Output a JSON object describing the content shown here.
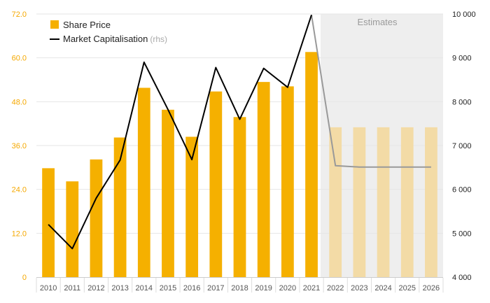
{
  "chart_data": {
    "type": "bar",
    "categories": [
      "2010",
      "2011",
      "2012",
      "2013",
      "2014",
      "2015",
      "2016",
      "2017",
      "2018",
      "2019",
      "2020",
      "2021",
      "2022",
      "2023",
      "2024",
      "2025",
      "2026"
    ],
    "series": [
      {
        "name": "Share Price",
        "type": "bar",
        "axis": "left",
        "values": [
          29.8,
          26.2,
          32.2,
          38.2,
          51.8,
          45.8,
          38.4,
          50.8,
          43.8,
          53.4,
          52.2,
          61.6,
          41.0,
          41.0,
          41.0,
          41.0,
          41.0
        ],
        "estimated_from_index": 12
      },
      {
        "name": "Market Capitalisation",
        "name_note": "(rhs)",
        "type": "line",
        "axis": "right",
        "values": [
          5200,
          4650,
          5800,
          6670,
          8900,
          7820,
          6680,
          8780,
          7600,
          8760,
          8330,
          9980,
          6540,
          6510,
          6510,
          6510,
          6510
        ],
        "estimated_from_index": 11
      }
    ],
    "y_left": {
      "ylim": [
        0,
        72
      ],
      "ticks": [
        "0",
        "12.0",
        "24.0",
        "36.0",
        "48.0",
        "60.0",
        "72.0"
      ],
      "tick_values": [
        0,
        12,
        24,
        36,
        48,
        60,
        72
      ]
    },
    "y_right": {
      "ylim": [
        4000,
        10000
      ],
      "ticks": [
        "4 000",
        "5 000",
        "6 000",
        "7 000",
        "8 000",
        "9 000",
        "10 000"
      ],
      "tick_values": [
        4000,
        5000,
        6000,
        7000,
        8000,
        9000,
        10000
      ]
    },
    "estimates_label": "Estimates",
    "estimates_start_category": "2022",
    "legend_position": "top-left",
    "grid": true,
    "colors": {
      "bar": "#f5b000",
      "bar_estimate": "#f3dba6",
      "line": "#000000",
      "line_estimate": "#999999",
      "estimate_region": "#eeeeee",
      "left_ticks": "#f5a800",
      "grid": "#e6e6e6"
    }
  }
}
